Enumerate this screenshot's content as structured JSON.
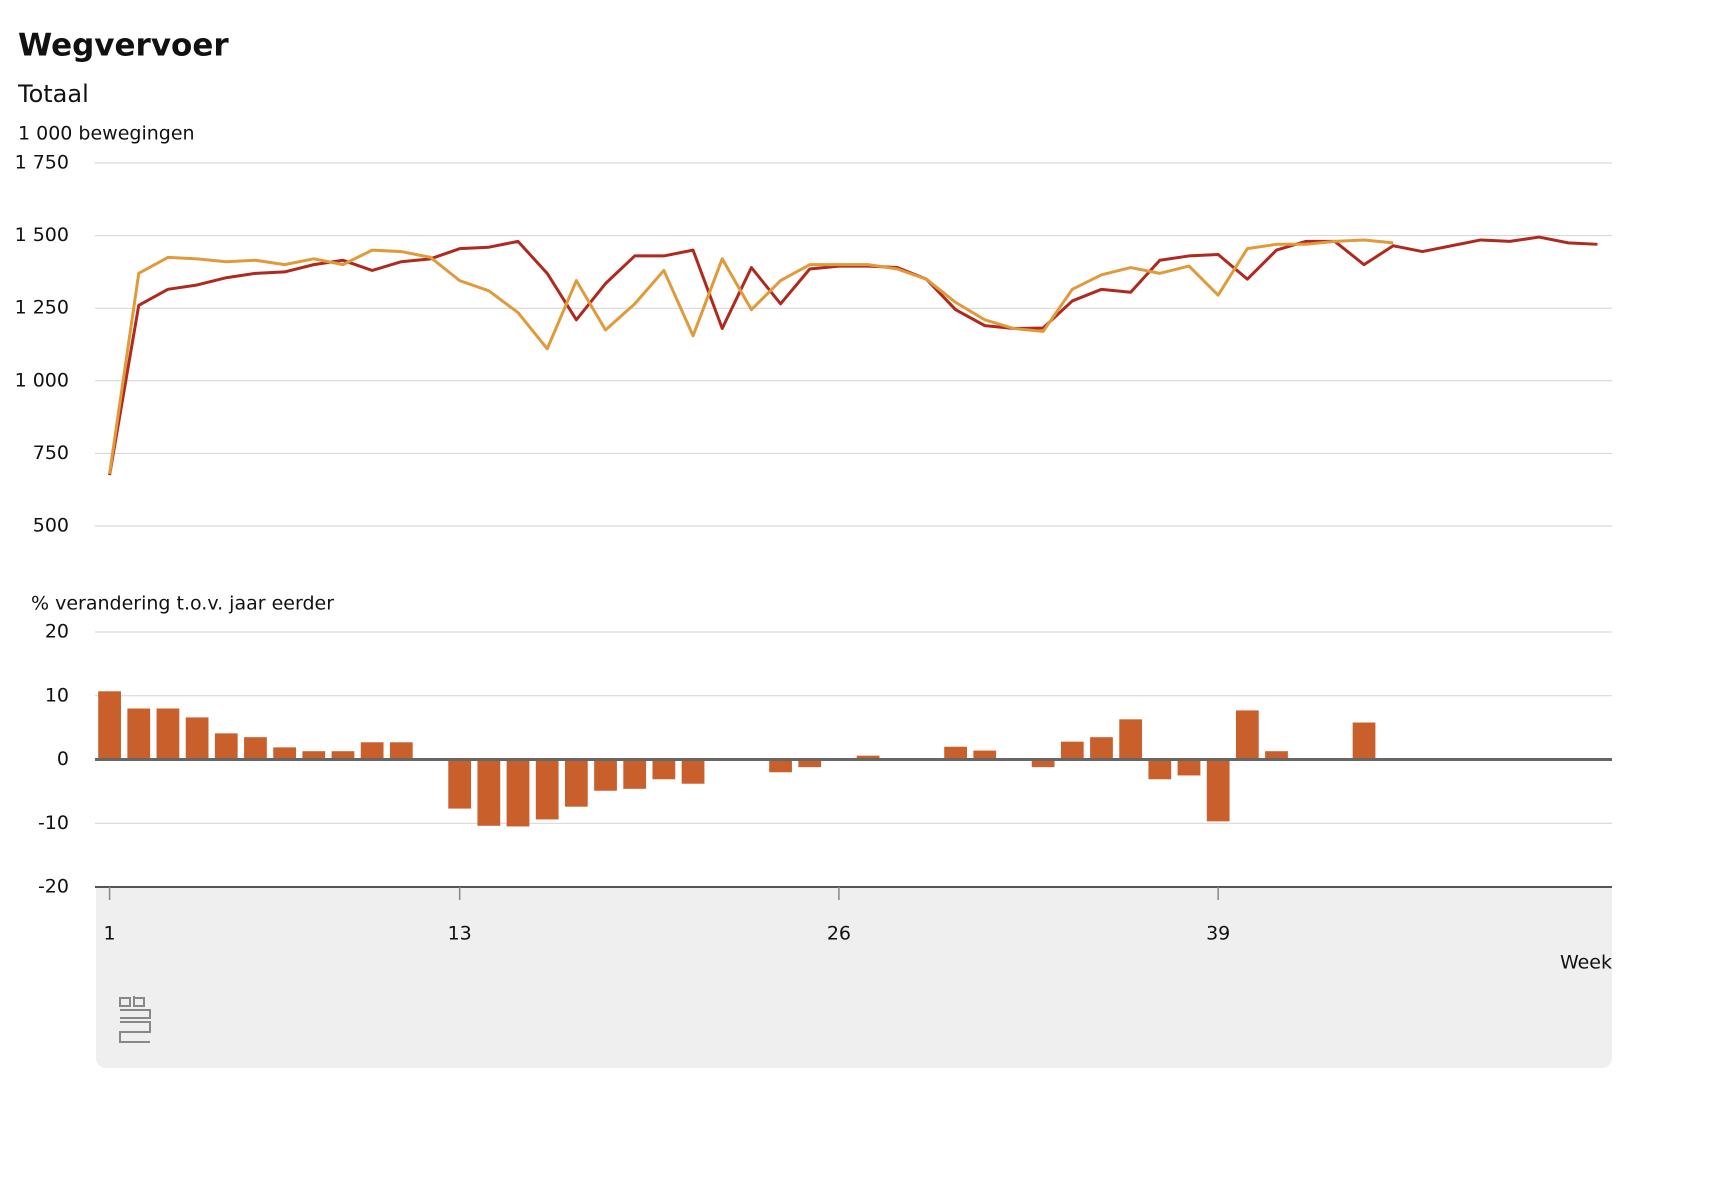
{
  "chart_data": [
    {
      "type": "line",
      "title": "Wegvervoer",
      "subtitle": "Totaal",
      "ylabel": "1 000 bewegingen",
      "x": [
        1,
        2,
        3,
        4,
        5,
        6,
        7,
        8,
        9,
        10,
        11,
        12,
        13,
        14,
        15,
        16,
        17,
        18,
        19,
        20,
        21,
        22,
        23,
        24,
        25,
        26,
        27,
        28,
        29,
        30,
        31,
        32,
        33,
        34,
        35,
        36,
        37,
        38,
        39,
        40,
        41,
        42,
        43,
        44,
        45,
        46,
        47,
        48,
        49,
        50,
        51,
        52
      ],
      "xlim": [
        0.5,
        52.5
      ],
      "ylim": [
        500,
        1750
      ],
      "yticks": [
        {
          "value": 500,
          "label": "500"
        },
        {
          "value": 750,
          "label": "750"
        },
        {
          "value": 1000,
          "label": "1 000"
        },
        {
          "value": 1250,
          "label": "1 250"
        },
        {
          "value": 1500,
          "label": "1 500"
        },
        {
          "value": 1750,
          "label": "1 750"
        }
      ],
      "grid": true,
      "series": [
        {
          "color": "#b0291f",
          "values": [
            675,
            1260,
            1315,
            1330,
            1355,
            1370,
            1375,
            1400,
            1415,
            1380,
            1410,
            1420,
            1455,
            1460,
            1480,
            1370,
            1210,
            1335,
            1430,
            1430,
            1450,
            1180,
            1390,
            1265,
            1385,
            1395,
            1395,
            1390,
            1350,
            1245,
            1190,
            1180,
            1182,
            1275,
            1315,
            1305,
            1415,
            1430,
            1435,
            1350,
            1450,
            1480,
            1480,
            1400,
            1465,
            1445,
            1465,
            1485,
            1480,
            1495,
            1475,
            1470
          ]
        },
        {
          "color": "#e09a3a",
          "values": [
            680,
            1370,
            1425,
            1420,
            1410,
            1415,
            1400,
            1420,
            1400,
            1450,
            1445,
            1425,
            1345,
            1310,
            1235,
            1110,
            1345,
            1175,
            1265,
            1380,
            1155,
            1420,
            1245,
            1345,
            1400,
            1400,
            1400,
            1385,
            1350,
            1270,
            1210,
            1180,
            1170,
            1315,
            1365,
            1390,
            1370,
            1395,
            1295,
            1455,
            1470,
            1470,
            1480,
            1485,
            1475,
            null,
            null,
            null,
            null,
            null,
            null,
            null
          ]
        }
      ]
    },
    {
      "type": "bar",
      "ylabel": "% verandering t.o.v. jaar eerder",
      "xlabel": "Week",
      "x": [
        1,
        2,
        3,
        4,
        5,
        6,
        7,
        8,
        9,
        10,
        11,
        12,
        13,
        14,
        15,
        16,
        17,
        18,
        19,
        20,
        21,
        22,
        23,
        24,
        25,
        26,
        27,
        28,
        29,
        30,
        31,
        32,
        33,
        34,
        35,
        36,
        37,
        38,
        39,
        40,
        41,
        42,
        43,
        44,
        45,
        46,
        47,
        48,
        49,
        50,
        51,
        52
      ],
      "values": [
        10.7,
        8.0,
        8.0,
        6.6,
        4.1,
        3.5,
        1.9,
        1.3,
        1.3,
        2.7,
        2.7,
        0,
        -7.7,
        -10.4,
        -10.5,
        -9.4,
        -7.4,
        -4.9,
        -4.6,
        -3.1,
        -3.8,
        0,
        0,
        -2.0,
        -1.2,
        0,
        0.6,
        -0.2,
        -0.2,
        2.0,
        1.4,
        0,
        -1.2,
        2.8,
        3.5,
        6.3,
        -3.1,
        -2.5,
        -9.7,
        7.7,
        1.3,
        -0.2,
        0,
        5.8,
        0.2,
        null,
        null,
        null,
        null,
        null,
        null,
        null
      ],
      "color": "#c95f2b",
      "xlim": [
        0.5,
        52.5
      ],
      "xticks": [
        1,
        13,
        26,
        39
      ],
      "ylim": [
        -20,
        20
      ],
      "yticks": [
        -20,
        -10,
        0,
        10,
        20
      ],
      "grid": true
    }
  ]
}
